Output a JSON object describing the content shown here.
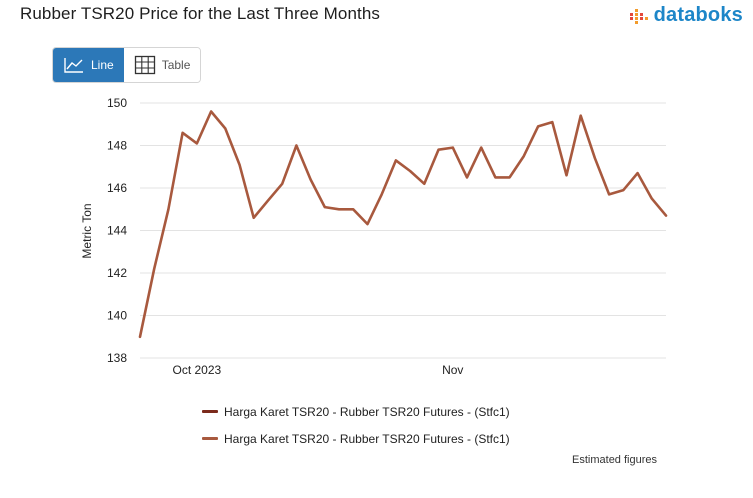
{
  "header": {
    "title": "Rubber TSR20 Price for the Last Three Months",
    "brand": "databoks",
    "brand_color": "#1d86c8"
  },
  "view_toggle": {
    "line_label": "Line",
    "table_label": "Table",
    "active": "line",
    "active_color": "#2c78b8"
  },
  "footer": {
    "note": "Estimated figures"
  },
  "chart_data": {
    "type": "line",
    "title": "Rubber TSR20 Price for the Last Three Months",
    "xlabel": "",
    "ylabel": "Metric Ton",
    "ylim": [
      138,
      150
    ],
    "yticks": [
      138,
      140,
      142,
      144,
      146,
      148,
      150
    ],
    "grid": true,
    "legend_position": "bottom",
    "x_tick_labels": [
      {
        "index": 4,
        "label": "Oct 2023"
      },
      {
        "index": 22,
        "label": "Nov"
      }
    ],
    "series": [
      {
        "name": "Harga Karet TSR20 - Rubber TSR20 Futures - (Stfc1)",
        "color": "#7b2a1c",
        "values": []
      },
      {
        "name": "Harga Karet TSR20 - Rubber TSR20 Futures - (Stfc1)",
        "color": "#a8593e",
        "values": [
          139.0,
          142.2,
          145.0,
          148.6,
          148.1,
          149.6,
          148.8,
          147.1,
          144.6,
          145.4,
          146.2,
          148.0,
          146.4,
          145.1,
          145.0,
          145.0,
          144.3,
          145.7,
          147.3,
          146.8,
          146.2,
          147.8,
          147.9,
          146.5,
          147.9,
          146.5,
          146.5,
          147.5,
          148.9,
          149.1,
          146.6,
          149.4,
          147.4,
          145.7,
          145.9,
          146.7,
          145.5,
          144.7
        ]
      }
    ]
  }
}
